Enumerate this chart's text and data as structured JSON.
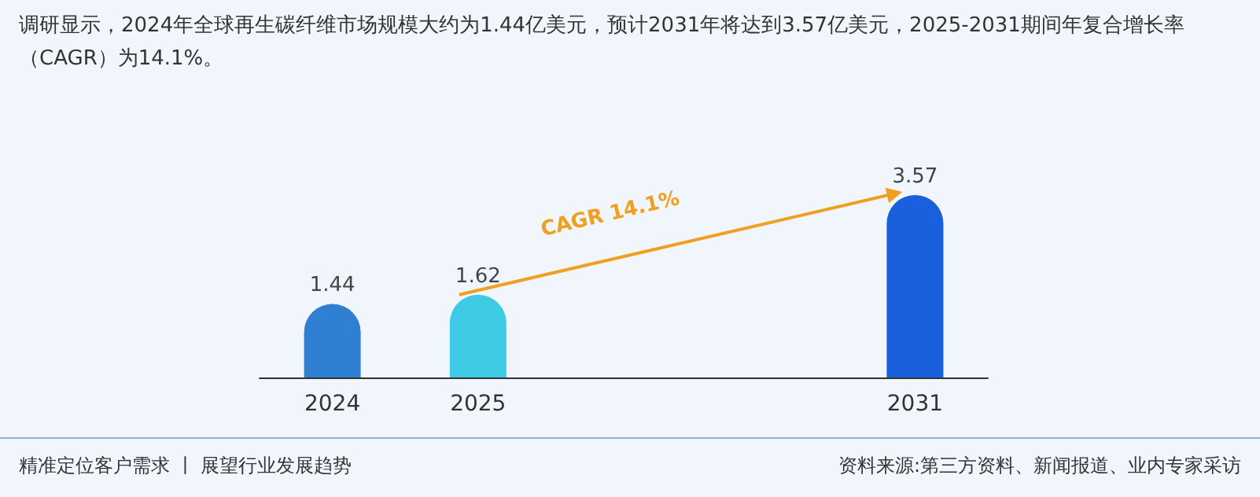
{
  "chart_data": {
    "type": "bar",
    "title": "调研显示，2024年全球再生碳纤维市场规模大约为1.44亿美元，预计2031年将达到3.57亿美元，2025-2031期间年复合增长率（CAGR）为14.1%。",
    "categories": [
      "2024",
      "2025",
      null,
      null,
      "2031"
    ],
    "values": [
      1.44,
      1.62,
      null,
      null,
      3.57
    ],
    "colors": [
      "#2f7fd3",
      "#3ecbe6",
      null,
      null,
      "#1a5fdb"
    ],
    "data_labels": true,
    "tick_labels": "x",
    "annotations": [
      "CAGR 14.1%",
      "精准定位客户需求 丨 展望行业发展趋势",
      "资料来源:第三方资料、新闻报道、业内专家采访"
    ]
  }
}
